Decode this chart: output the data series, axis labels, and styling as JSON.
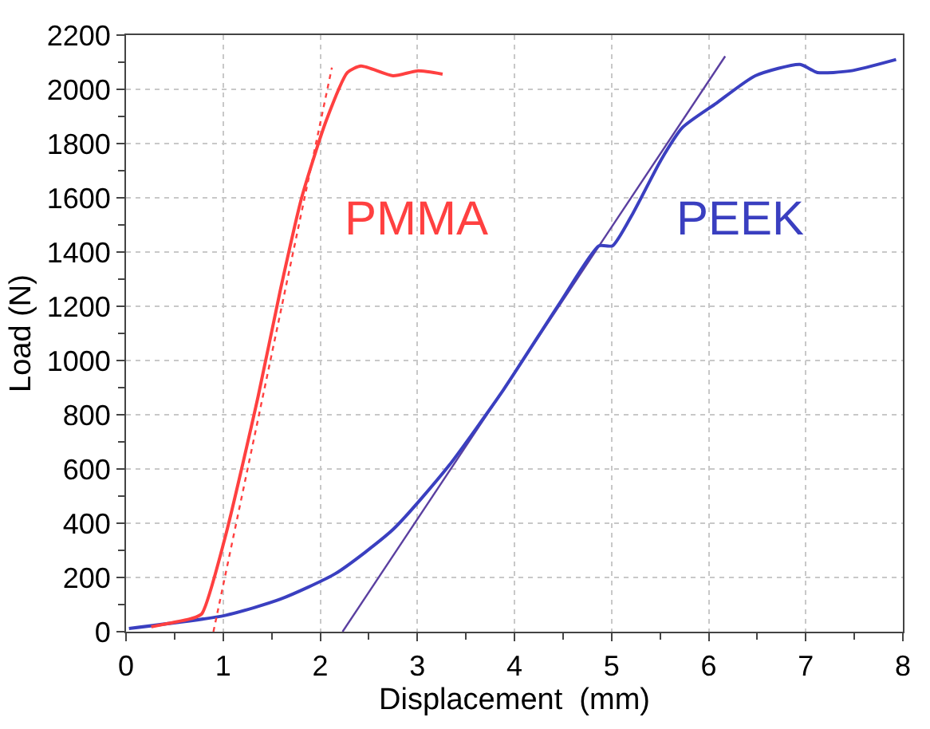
{
  "chart_data": {
    "type": "line",
    "xlabel": "Displacement  (mm)",
    "ylabel": "Load (N)",
    "xlim": [
      0,
      8
    ],
    "xticks": [
      0,
      1,
      2,
      3,
      4,
      5,
      6,
      7,
      8
    ],
    "ylim": [
      0,
      2200
    ],
    "yticks": [
      0,
      200,
      400,
      600,
      800,
      1000,
      1200,
      1400,
      1600,
      1800,
      2000,
      2200
    ],
    "grid": true,
    "legend": false,
    "marker": "none",
    "series": [
      {
        "name": "PMMA",
        "color": "#ff4040",
        "line_style": "solid",
        "x": [
          0.26,
          0.43,
          0.67,
          0.78,
          1.02,
          1.36,
          1.59,
          1.81,
          2.06,
          2.28,
          2.42,
          2.75,
          3.0,
          3.26
        ],
        "values": [
          18,
          30,
          48,
          66,
          347,
          867,
          1261,
          1602,
          1883,
          2062,
          2086,
          2050,
          2068,
          2056
        ]
      },
      {
        "color": "#ff4040",
        "line_style": "dotted",
        "x": [
          0.9,
          2.12
        ],
        "values": [
          0,
          2080
        ]
      },
      {
        "name": "PEEK",
        "color": "#3a3fc0",
        "line_style": "solid",
        "x": [
          0.03,
          1.02,
          1.59,
          2.16,
          2.75,
          3.32,
          3.89,
          4.47,
          4.87,
          5.01,
          5.22,
          5.51,
          5.73,
          6.08,
          6.48,
          6.94,
          7.12,
          7.46,
          7.93
        ],
        "values": [
          12,
          60,
          120,
          215,
          377,
          610,
          894,
          1214,
          1423,
          1423,
          1543,
          1740,
          1859,
          1949,
          2050,
          2092,
          2062,
          2068,
          2110
        ]
      },
      {
        "color": "#5a3fa0",
        "line_style": "solid",
        "x": [
          2.23,
          6.17
        ],
        "values": [
          0,
          2122
        ]
      }
    ]
  }
}
